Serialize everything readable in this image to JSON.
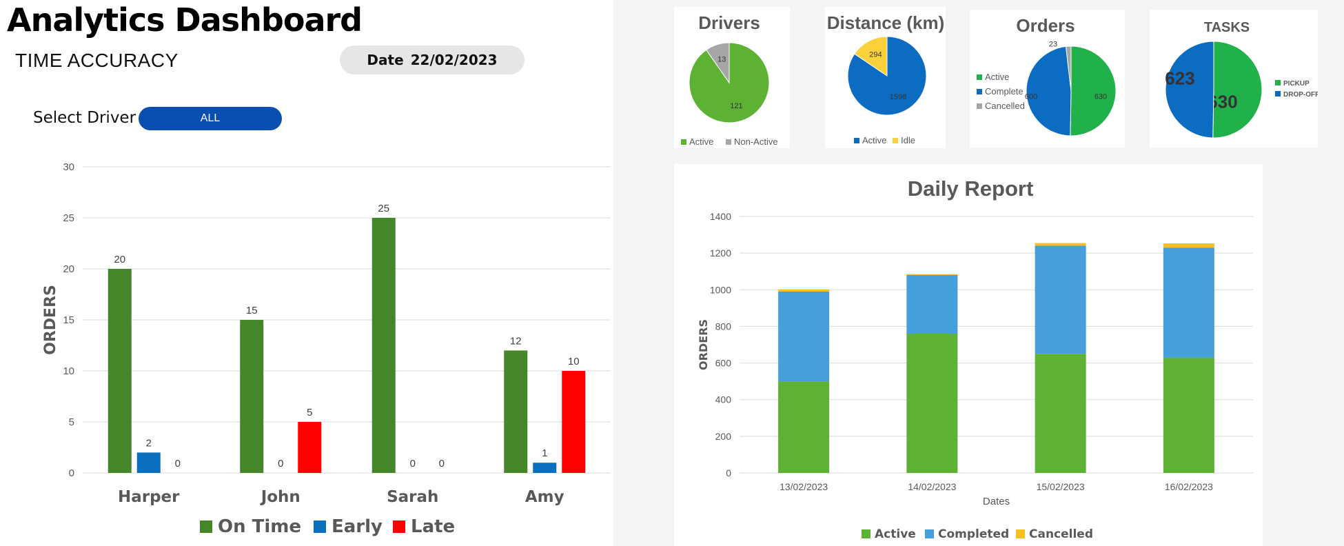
{
  "app": {
    "title": "Analytics Dashboard"
  },
  "header": {
    "section_title": "TIME ACCURACY",
    "date_label": "Date",
    "date_value": "22/02/2023",
    "select_driver_label": "Select Driver",
    "select_driver_value": "ALL"
  },
  "colors": {
    "on_time": "#46862a",
    "early": "#0a6fbe",
    "late": "#ff0000",
    "pie_green": "#5db133",
    "pie_gray": "#a6a6a6",
    "pie_blue": "#0b6cc2",
    "pie_yellow": "#fad13a",
    "orders_green": "#20b14a",
    "report_active": "#5db133",
    "report_completed": "#459fdc",
    "report_cancelled": "#f6bf22"
  },
  "chart_data": [
    {
      "id": "time_accuracy",
      "type": "bar",
      "title": "",
      "xlabel": "",
      "ylabel": "ORDERS",
      "categories": [
        "Harper",
        "John",
        "Sarah",
        "Amy"
      ],
      "series": [
        {
          "name": "On Time",
          "values": [
            20,
            15,
            25,
            12
          ]
        },
        {
          "name": "Early",
          "values": [
            2,
            0,
            0,
            1
          ]
        },
        {
          "name": "Late",
          "values": [
            0,
            5,
            0,
            10
          ]
        }
      ],
      "ylim": [
        0,
        30
      ],
      "yticks": [
        0,
        5,
        10,
        15,
        20,
        25,
        30
      ],
      "grid": true,
      "legend": "bottom"
    },
    {
      "id": "drivers",
      "type": "pie",
      "title": "Drivers",
      "labels": [
        "Active",
        "Non-Active"
      ],
      "values": [
        121,
        13
      ],
      "legend": "bottom"
    },
    {
      "id": "distance",
      "type": "pie",
      "title": "Distance (km)",
      "labels": [
        "Active",
        "Idle"
      ],
      "values": [
        1598,
        294
      ],
      "legend": "bottom"
    },
    {
      "id": "orders",
      "type": "pie",
      "title": "Orders",
      "labels": [
        "Active",
        "Complete",
        "Cancelled"
      ],
      "values": [
        630,
        600,
        23
      ],
      "legend": "left"
    },
    {
      "id": "tasks",
      "type": "pie",
      "title": "TASKS",
      "labels": [
        "PICKUP",
        "DROP-OFF"
      ],
      "values": [
        630,
        623
      ],
      "legend": "right"
    },
    {
      "id": "daily_report",
      "type": "bar",
      "stacked": true,
      "title": "Daily Report",
      "xlabel": "Dates",
      "ylabel": "ORDERS",
      "categories": [
        "13/02/2023",
        "14/02/2023",
        "15/02/2023",
        "16/02/2023"
      ],
      "series": [
        {
          "name": "Active",
          "values": [
            500,
            760,
            650,
            630
          ]
        },
        {
          "name": "Completed",
          "values": [
            490,
            320,
            590,
            600
          ]
        },
        {
          "name": "Cancelled",
          "values": [
            12,
            5,
            15,
            23
          ]
        }
      ],
      "ylim": [
        0,
        1400
      ],
      "yticks": [
        0,
        200,
        400,
        600,
        800,
        1000,
        1200,
        1400
      ],
      "grid": true,
      "legend": "bottom"
    }
  ]
}
